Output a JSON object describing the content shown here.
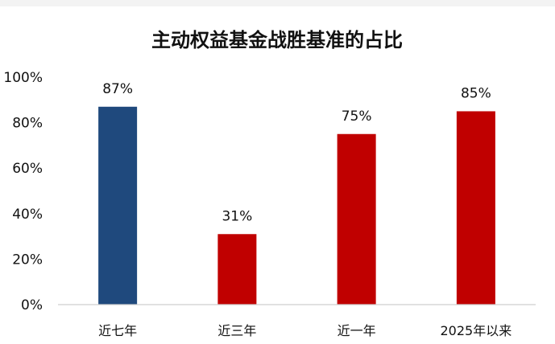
{
  "chart_data": {
    "type": "bar",
    "title": "主动权益基金战胜基准的占比",
    "categories": [
      "近七年",
      "近三年",
      "近一年",
      "2025年以来"
    ],
    "values": [
      87,
      31,
      75,
      85
    ],
    "data_labels": [
      "87%",
      "31%",
      "75%",
      "85%"
    ],
    "bar_colors": [
      "#1f497d",
      "#c00000",
      "#c00000",
      "#c00000"
    ],
    "ylim": [
      0,
      100
    ],
    "yticks": [
      0,
      20,
      40,
      60,
      80,
      100
    ],
    "ytick_labels": [
      "0%",
      "20%",
      "40%",
      "60%",
      "80%",
      "100%"
    ],
    "grid": false,
    "legend": "none"
  }
}
